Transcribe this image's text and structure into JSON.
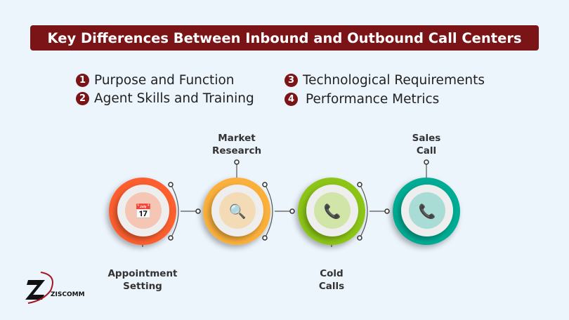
{
  "title": "Key Differences Between Inbound and Outbound Call Centers",
  "points": [
    {
      "num": "1",
      "label": "Purpose and Function"
    },
    {
      "num": "2",
      "label": "Agent Skills and Training"
    },
    {
      "num": "3",
      "label": "Technological Requirements"
    },
    {
      "num": "4",
      "label": "Performance Metrics"
    }
  ],
  "steps": [
    {
      "label_line1": "Appointment",
      "label_line2": "Setting",
      "icon": "calendar-check-icon",
      "color": "#fd5f2d",
      "inner": "#f5c6b4"
    },
    {
      "label_line1": "Market",
      "label_line2": "Research",
      "icon": "magnifier-chart-icon",
      "color": "#fbb03b",
      "inner": "#f3dcb5"
    },
    {
      "label_line1": "Cold",
      "label_line2": "Calls",
      "icon": "phone-snowflake-icon",
      "color": "#8cc512",
      "inner": "#d2e5a8"
    },
    {
      "label_line1": "Sales",
      "label_line2": "Call",
      "icon": "phone-dollar-icon",
      "color": "#00ac94",
      "inner": "#a8dcd5"
    }
  ],
  "logo": {
    "text": "ZISCOMM",
    "accent": "#a3141b"
  }
}
